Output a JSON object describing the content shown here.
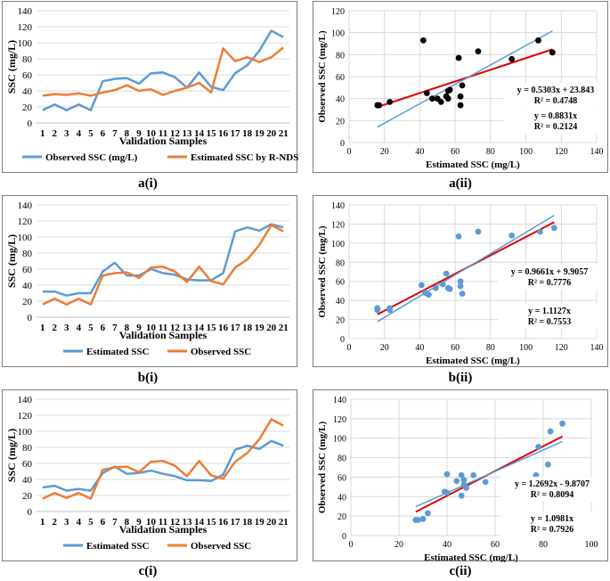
{
  "colors": {
    "blue": "#5b9bd5",
    "orange": "#ed7d31",
    "red": "#e00000",
    "black": "#000000",
    "grid": "#d9d9d9"
  },
  "captions": {
    "ai": "a(i)",
    "aii": "a(ii)",
    "bi": "b(i)",
    "bii": "b(ii)",
    "ci": "c(i)",
    "cii": "c(ii)"
  },
  "chart_data": [
    {
      "id": "ai",
      "type": "line",
      "title": "",
      "xlabel": "Validation Samples",
      "ylabel": "SSC (mg/L)",
      "categories": [
        "1",
        "2",
        "3",
        "4",
        "5",
        "6",
        "7",
        "8",
        "9",
        "10",
        "11",
        "12",
        "13",
        "14",
        "15",
        "16",
        "17",
        "18",
        "19",
        "20",
        "21"
      ],
      "ylim": [
        0,
        140
      ],
      "yticks": [
        "0",
        "20",
        "40",
        "60",
        "80",
        "100",
        "120",
        "140"
      ],
      "series": [
        {
          "name": "Observed SSC (mg/L)",
          "color": "#5b9bd5",
          "values": [
            16,
            23,
            16,
            23,
            16,
            52,
            55,
            56,
            49,
            62,
            63,
            57,
            44,
            63,
            45,
            41,
            62,
            72,
            90,
            115,
            107
          ]
        },
        {
          "name": "Estimated SSC by R-NDSSI (mg/L)",
          "color": "#ed7d31",
          "values": [
            34,
            36,
            35,
            37,
            34,
            38,
            41,
            47,
            40,
            42,
            35,
            40,
            44,
            50,
            38,
            93,
            77,
            82,
            76,
            82,
            94
          ]
        }
      ]
    },
    {
      "id": "aii",
      "type": "scatter",
      "xlabel": "Estimated SSC (mg/L)",
      "ylabel": "Observed SSC (mg/L)",
      "xlim": [
        0,
        140
      ],
      "ylim": [
        0,
        120
      ],
      "xticks": [
        "0",
        "20",
        "40",
        "60",
        "80",
        "100",
        "120",
        "140"
      ],
      "yticks": [
        "0",
        "20",
        "40",
        "60",
        "80",
        "100",
        "120"
      ],
      "point_color": "#000000",
      "x": [
        16,
        17,
        23,
        42,
        44,
        47,
        50,
        52,
        55,
        56,
        56,
        57,
        62,
        63,
        63,
        64,
        73,
        92,
        107,
        115,
        115
      ],
      "y": [
        34,
        34,
        37,
        93,
        45,
        40,
        40,
        37,
        42,
        47,
        40,
        48,
        77,
        42,
        34,
        52,
        83,
        76,
        93,
        82,
        82
      ],
      "fits": [
        {
          "label": "y = 0.5303x + 23.843",
          "r2": "R² = 0.4748",
          "slope": 0.5303,
          "intercept": 23.843,
          "x_range": [
            16,
            115
          ],
          "color": "#e00000"
        },
        {
          "label": "y = 0.8831x",
          "r2": "R² = 0.2124",
          "slope": 0.8831,
          "intercept": 0,
          "x_range": [
            16,
            115
          ],
          "color": "#5b9bd5"
        }
      ]
    },
    {
      "id": "bi",
      "type": "line",
      "xlabel": "Validation Samples",
      "ylabel": "SSC (mg/L)",
      "categories": [
        "1",
        "2",
        "3",
        "4",
        "5",
        "6",
        "7",
        "8",
        "9",
        "10",
        "11",
        "12",
        "13",
        "14",
        "15",
        "16",
        "17",
        "18",
        "19",
        "20",
        "21"
      ],
      "ylim": [
        0,
        140
      ],
      "yticks": [
        "0",
        "20",
        "40",
        "60",
        "80",
        "100",
        "120",
        "140"
      ],
      "series": [
        {
          "name": "Estimated SSC",
          "color": "#5b9bd5",
          "values": [
            32,
            32,
            27,
            30,
            30,
            57,
            68,
            52,
            52,
            60,
            55,
            53,
            47,
            46,
            46,
            55,
            107,
            112,
            108,
            116,
            112
          ]
        },
        {
          "name": "Observed SSC",
          "color": "#ed7d31",
          "values": [
            16,
            23,
            16,
            23,
            16,
            52,
            55,
            56,
            49,
            62,
            63,
            57,
            44,
            63,
            45,
            41,
            62,
            72,
            90,
            115,
            107
          ]
        }
      ]
    },
    {
      "id": "bii",
      "type": "scatter",
      "xlabel": "Estimated SSC (mg/L)",
      "ylabel": "Observed SSC (mg/L)",
      "xlim": [
        0,
        140
      ],
      "ylim": [
        0,
        140
      ],
      "xticks": [
        "0",
        "20",
        "40",
        "60",
        "80",
        "100",
        "120",
        "140"
      ],
      "yticks": [
        "0",
        "20",
        "40",
        "60",
        "80",
        "100",
        "120",
        "140"
      ],
      "point_color": "#5b9bd5",
      "x": [
        16,
        16,
        23,
        23,
        41,
        43,
        45,
        49,
        53,
        55,
        56,
        57,
        62,
        63,
        63,
        64,
        73,
        92,
        108,
        116
      ],
      "y": [
        32,
        30,
        32,
        30,
        56,
        48,
        46,
        53,
        57,
        68,
        53,
        52,
        107,
        60,
        55,
        47,
        112,
        108,
        112,
        116
      ],
      "fits": [
        {
          "label": "y = 0.9661x + 9.9057",
          "r2": "R² = 0.7776",
          "slope": 0.9661,
          "intercept": 9.9057,
          "x_range": [
            16,
            116
          ],
          "color": "#e00000"
        },
        {
          "label": "y = 1.1127x",
          "r2": "R² = 0.7553",
          "slope": 1.1127,
          "intercept": 0,
          "x_range": [
            16,
            116
          ],
          "color": "#5b9bd5"
        }
      ]
    },
    {
      "id": "ci",
      "type": "line",
      "xlabel": "Validation Samples",
      "ylabel": "SSC (mg/L)",
      "categories": [
        "1",
        "2",
        "3",
        "4",
        "5",
        "6",
        "7",
        "8",
        "9",
        "10",
        "11",
        "12",
        "13",
        "14",
        "15",
        "16",
        "17",
        "18",
        "19",
        "20",
        "21"
      ],
      "ylim": [
        0,
        140
      ],
      "yticks": [
        "0",
        "20",
        "40",
        "60",
        "80",
        "100",
        "120",
        "140"
      ],
      "series": [
        {
          "name": "Estimated SSC",
          "color": "#5b9bd5",
          "values": [
            30,
            32,
            26,
            28,
            26,
            48,
            56,
            47,
            48,
            51,
            47,
            44,
            39,
            39,
            38,
            46,
            77,
            82,
            78,
            88,
            82
          ]
        },
        {
          "name": "Observed SSC",
          "color": "#ed7d31",
          "values": [
            16,
            23,
            17,
            23,
            16,
            52,
            55,
            56,
            49,
            62,
            63,
            57,
            44,
            63,
            45,
            41,
            62,
            73,
            90,
            115,
            107
          ]
        }
      ]
    },
    {
      "id": "cii",
      "type": "scatter",
      "xlabel": "Estimated SSC (mg/L)",
      "ylabel": "Observed SSC (mg/L)",
      "xlim": [
        0,
        100
      ],
      "ylim": [
        0,
        140
      ],
      "xticks": [
        "0",
        "20",
        "40",
        "60",
        "80",
        "100"
      ],
      "yticks": [
        "0",
        "20",
        "40",
        "60",
        "80",
        "100",
        "120",
        "140"
      ],
      "point_color": "#5b9bd5",
      "x": [
        27,
        28,
        30,
        32,
        39,
        40,
        40,
        44,
        46,
        46,
        47,
        47,
        48,
        51,
        56,
        77,
        78,
        82,
        83,
        88
      ],
      "y": [
        16,
        16,
        17,
        23,
        45,
        44,
        63,
        56,
        62,
        41,
        57,
        52,
        49,
        62,
        55,
        62,
        91,
        73,
        107,
        115
      ],
      "fits": [
        {
          "label": "y = 1.2692x - 9.8707",
          "r2": "R² = 0.8094",
          "slope": 1.2692,
          "intercept": -9.8707,
          "x_range": [
            27,
            88
          ],
          "color": "#e00000"
        },
        {
          "label": "y = 1.0981x",
          "r2": "R² = 0.7926",
          "slope": 1.0981,
          "intercept": 0,
          "x_range": [
            27,
            88
          ],
          "color": "#5b9bd5"
        }
      ]
    }
  ]
}
